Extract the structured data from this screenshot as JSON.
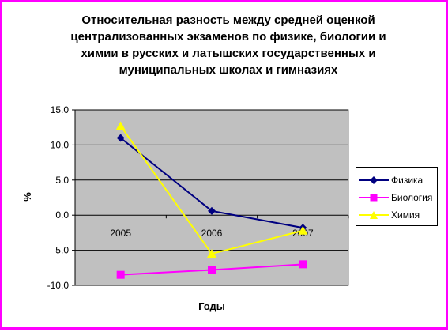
{
  "chart_data": {
    "type": "line",
    "title_lines": [
      "Относительная разность между средней оценкой",
      "централизованных экзаменов по физике, биологии и",
      "химии в русских и латышских государственных и",
      "муниципальных школах и гимназиях"
    ],
    "xlabel": "Годы",
    "ylabel": "%",
    "categories": [
      "2005",
      "2006",
      "2007"
    ],
    "ylim": [
      -10,
      15
    ],
    "yticks": [
      -10,
      -5,
      0,
      5,
      10,
      15
    ],
    "ytick_labels": [
      "-10.0",
      "-5.0",
      "0.0",
      "5.0",
      "10.0",
      "15.0"
    ],
    "grid": true,
    "legend_position": "right",
    "plot_background": "#c0c0c0",
    "series": [
      {
        "name": "Физика",
        "values": [
          11.0,
          0.6,
          -1.8
        ],
        "color": "#000080",
        "marker": "diamond"
      },
      {
        "name": "Биология",
        "values": [
          -8.5,
          -7.8,
          -7.0
        ],
        "color": "#ff00ff",
        "marker": "square"
      },
      {
        "name": "Химия",
        "values": [
          12.7,
          -5.5,
          -2.2
        ],
        "color": "#ffff00",
        "marker": "triangle"
      }
    ]
  },
  "frame_color": "#ff00ff"
}
